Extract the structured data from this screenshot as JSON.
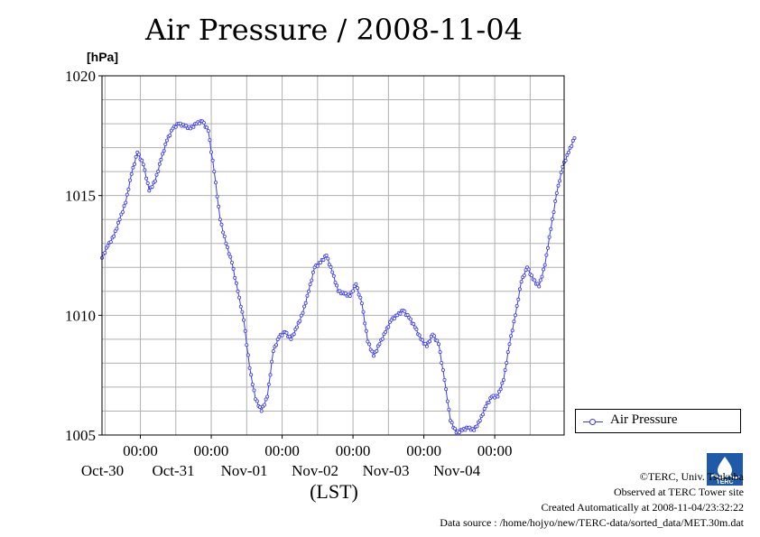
{
  "title": "Air Pressure / 2008-11-04",
  "legend": {
    "label": "Air Pressure"
  },
  "logo": {
    "name": "TERC logo",
    "text": "TERC"
  },
  "credits": [
    "©TERC, Univ. Tsukuba",
    "Observed at TERC Tower site",
    "Created Automatically at 2008-11-04/23:32:22",
    "Data source : /home/hojyo/new/TERC-data/sorted_data/MET.30m.dat"
  ],
  "colors": {
    "series": "#3a3af0",
    "grid": "#b0b0b0",
    "frame": "#000000"
  },
  "chart_data": {
    "type": "line",
    "title": "Air Pressure / 2008-11-04",
    "ylabel": "[hPa]",
    "xlabel": "(LST)",
    "ylim": [
      1005,
      1020
    ],
    "yticks": [
      1005,
      1010,
      1015,
      1020
    ],
    "xlim_days": [
      "2008-10-29 11:00",
      "2008-11-04 23:30"
    ],
    "xticks": [
      {
        "time": "00:00",
        "date": "Oct-30"
      },
      {
        "time": "00:00",
        "date": "Oct-31"
      },
      {
        "time": "00:00",
        "date": "Nov-01"
      },
      {
        "time": "00:00",
        "date": "Nov-02"
      },
      {
        "time": "00:00",
        "date": "Nov-03"
      },
      {
        "time": "00:00",
        "date": "Nov-04"
      }
    ],
    "grid": true,
    "legend_position": "right",
    "series": [
      {
        "name": "Air Pressure",
        "x_start": "2008-10-29 11:00",
        "x_step_hours": 2,
        "values": [
          1012.4,
          1012.9,
          1013.3,
          1014.0,
          1014.7,
          1015.9,
          1016.8,
          1016.3,
          1015.2,
          1015.6,
          1016.5,
          1017.3,
          1017.8,
          1018.0,
          1017.9,
          1017.8,
          1018.0,
          1018.1,
          1017.7,
          1016.0,
          1014.0,
          1013.0,
          1012.2,
          1011.0,
          1009.8,
          1007.8,
          1006.5,
          1006.0,
          1006.6,
          1008.5,
          1009.1,
          1009.3,
          1009.0,
          1009.5,
          1010.1,
          1011.0,
          1012.0,
          1012.2,
          1012.5,
          1011.8,
          1011.0,
          1010.9,
          1010.8,
          1011.3,
          1010.5,
          1008.9,
          1008.3,
          1008.8,
          1009.3,
          1009.8,
          1010.0,
          1010.2,
          1009.9,
          1009.5,
          1009.0,
          1008.7,
          1009.2,
          1008.8,
          1007.3,
          1005.6,
          1005.1,
          1005.2,
          1005.3,
          1005.2,
          1005.6,
          1006.2,
          1006.6,
          1006.6,
          1007.3,
          1008.8,
          1010.0,
          1011.4,
          1012.0,
          1011.5,
          1011.2,
          1012.1,
          1013.6,
          1015.1,
          1016.2,
          1016.8,
          1017.4
        ]
      }
    ]
  }
}
